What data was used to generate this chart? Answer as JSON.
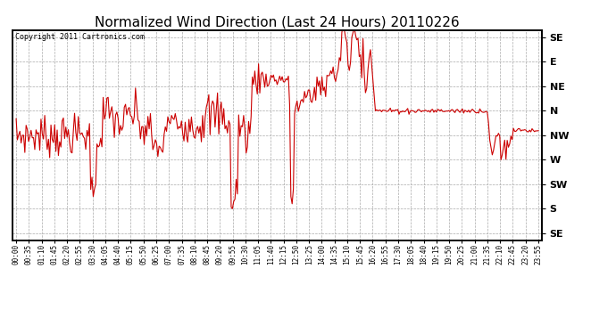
{
  "title": "Normalized Wind Direction (Last 24 Hours) 20110226",
  "copyright_text": "Copyright 2011 Cartronics.com",
  "line_color": "#cc0000",
  "background_color": "#ffffff",
  "grid_color": "#aaaaaa",
  "y_labels": [
    "SE",
    "S",
    "SW",
    "W",
    "NW",
    "N",
    "NE",
    "E",
    "SE"
  ],
  "y_positions": [
    0,
    1,
    2,
    3,
    4,
    5,
    6,
    7,
    8
  ],
  "x_tick_labels": [
    "00:00",
    "00:35",
    "01:10",
    "01:45",
    "02:20",
    "02:55",
    "03:30",
    "04:05",
    "04:40",
    "05:15",
    "05:50",
    "06:25",
    "07:00",
    "07:35",
    "08:10",
    "08:45",
    "09:20",
    "09:55",
    "10:30",
    "11:05",
    "11:40",
    "12:15",
    "12:50",
    "13:25",
    "14:00",
    "14:35",
    "15:10",
    "15:45",
    "16:20",
    "16:55",
    "17:30",
    "18:05",
    "18:40",
    "19:15",
    "19:50",
    "20:25",
    "21:00",
    "21:35",
    "22:10",
    "22:45",
    "23:20",
    "23:55"
  ],
  "title_fontsize": 11,
  "xtick_fontsize": 5.5,
  "ytick_fontsize": 8
}
